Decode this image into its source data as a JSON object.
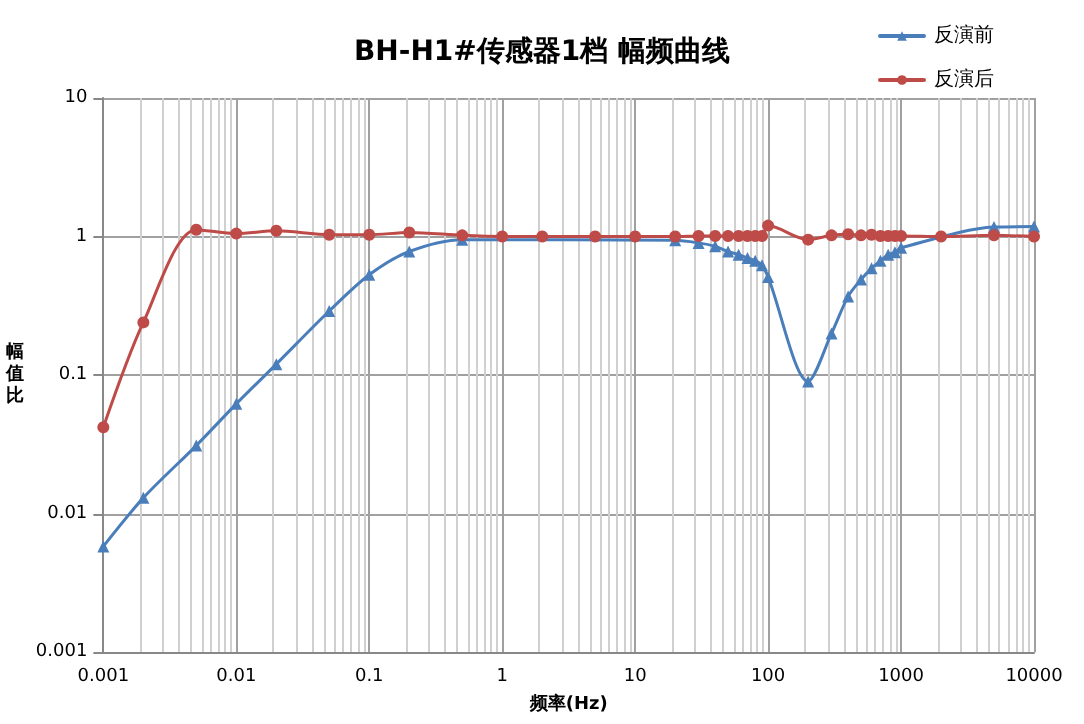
{
  "chart_data": {
    "type": "line",
    "title": "BH-H1#传感器1档 幅频曲线",
    "xlabel": "频率(Hz)",
    "ylabel": "幅值比",
    "log": "xy",
    "grid": true,
    "legend": "top right",
    "line_style": "solid",
    "xlim": [
      0.001,
      10000
    ],
    "xticks": [
      0.001,
      0.01,
      0.1,
      1,
      10,
      100,
      1000,
      10000
    ],
    "ylim": [
      0.001,
      10
    ],
    "yticks": [
      0.001,
      0.01,
      0.1,
      1,
      10
    ],
    "series": [
      {
        "name": "反演前",
        "color": "#4a7ebb",
        "marker": "triangle",
        "x": [
          0.001,
          0.002,
          0.005,
          0.01,
          0.02,
          0.05,
          0.1,
          0.2,
          0.5,
          1,
          2,
          10,
          20,
          30,
          40,
          50,
          60,
          70,
          80,
          90,
          100,
          200,
          300,
          400,
          500,
          600,
          700,
          800,
          900,
          1000,
          5000,
          10000
        ],
        "values": [
          0.0058,
          0.013,
          0.031,
          0.062,
          0.12,
          0.29,
          0.53,
          0.78,
          0.95,
          null,
          null,
          null,
          0.94,
          0.9,
          0.85,
          0.78,
          0.74,
          0.7,
          0.67,
          0.62,
          0.51,
          0.09,
          0.2,
          0.37,
          0.49,
          0.59,
          0.67,
          0.74,
          0.77,
          0.83,
          1.17,
          1.18
        ]
      },
      {
        "name": "反演后",
        "color": "#be4b48",
        "marker": "circle",
        "x": [
          0.001,
          0.002,
          0.005,
          0.01,
          0.02,
          0.05,
          0.1,
          0.2,
          0.5,
          1,
          2,
          5,
          10,
          20,
          30,
          40,
          50,
          60,
          70,
          80,
          90,
          100,
          200,
          300,
          400,
          500,
          600,
          700,
          800,
          900,
          1000,
          2000,
          5000,
          10000
        ],
        "values": [
          0.042,
          0.24,
          1.12,
          1.05,
          1.1,
          1.03,
          1.03,
          1.07,
          1.02,
          1.0,
          1.0,
          1.0,
          1.0,
          1.0,
          1.01,
          1.01,
          1.01,
          1.01,
          1.01,
          1.01,
          1.01,
          1.2,
          0.95,
          1.02,
          1.04,
          1.02,
          1.03,
          1.01,
          1.01,
          1.01,
          1.01,
          1.0,
          1.02,
          1.0
        ]
      }
    ]
  }
}
